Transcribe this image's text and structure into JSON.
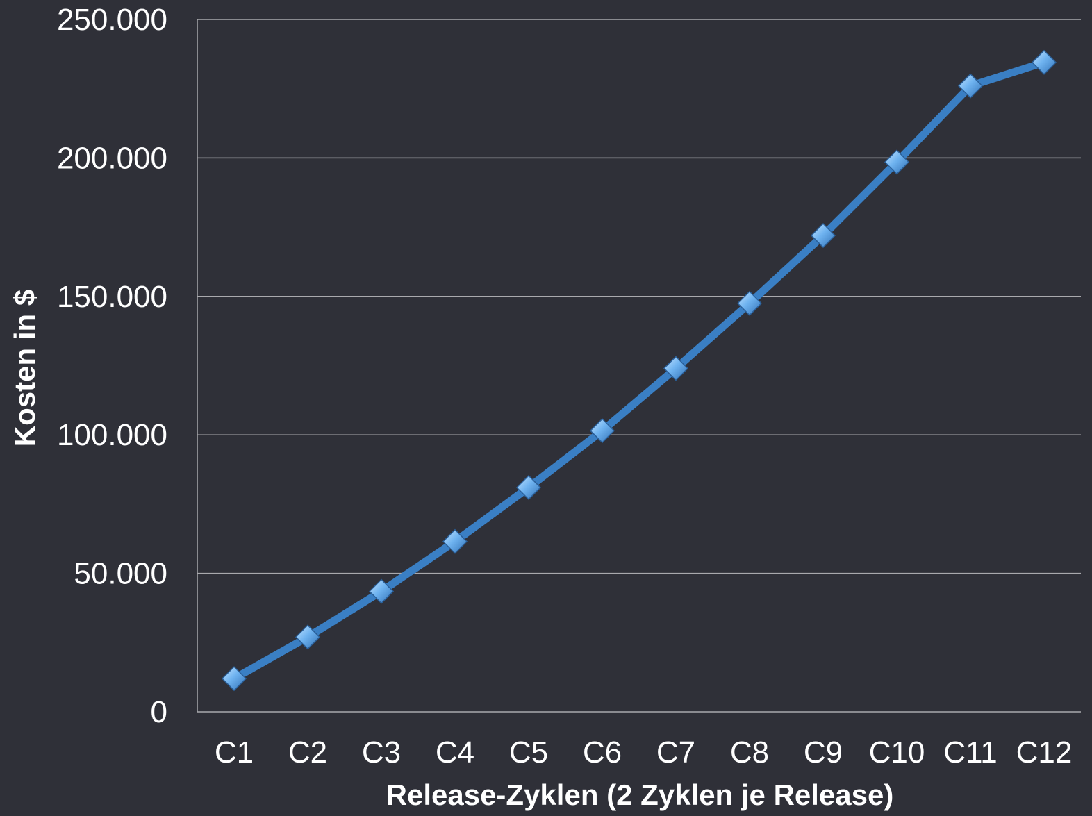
{
  "chart_data": {
    "type": "line",
    "title": "",
    "xlabel": "Release-Zyklen (2 Zyklen je Release)",
    "ylabel": "Kosten in $",
    "categories": [
      "C1",
      "C2",
      "C3",
      "C4",
      "C5",
      "C6",
      "C7",
      "C8",
      "C9",
      "C10",
      "C11",
      "C12"
    ],
    "series": [
      {
        "values": [
          12000,
          27000,
          43500,
          61500,
          81000,
          101500,
          124000,
          147500,
          172000,
          198500,
          226000,
          234500
        ],
        "color": "#3a7fc4",
        "marker": "diamond",
        "marker_color": "#6fb3f0"
      }
    ],
    "ylim": [
      0,
      250000
    ],
    "yticks": [
      0,
      50000,
      100000,
      150000,
      200000,
      250000
    ],
    "ytick_labels": [
      "0",
      "50.000",
      "100.000",
      "150.000",
      "200.000",
      "250.000"
    ],
    "grid": true,
    "legend": "none"
  }
}
